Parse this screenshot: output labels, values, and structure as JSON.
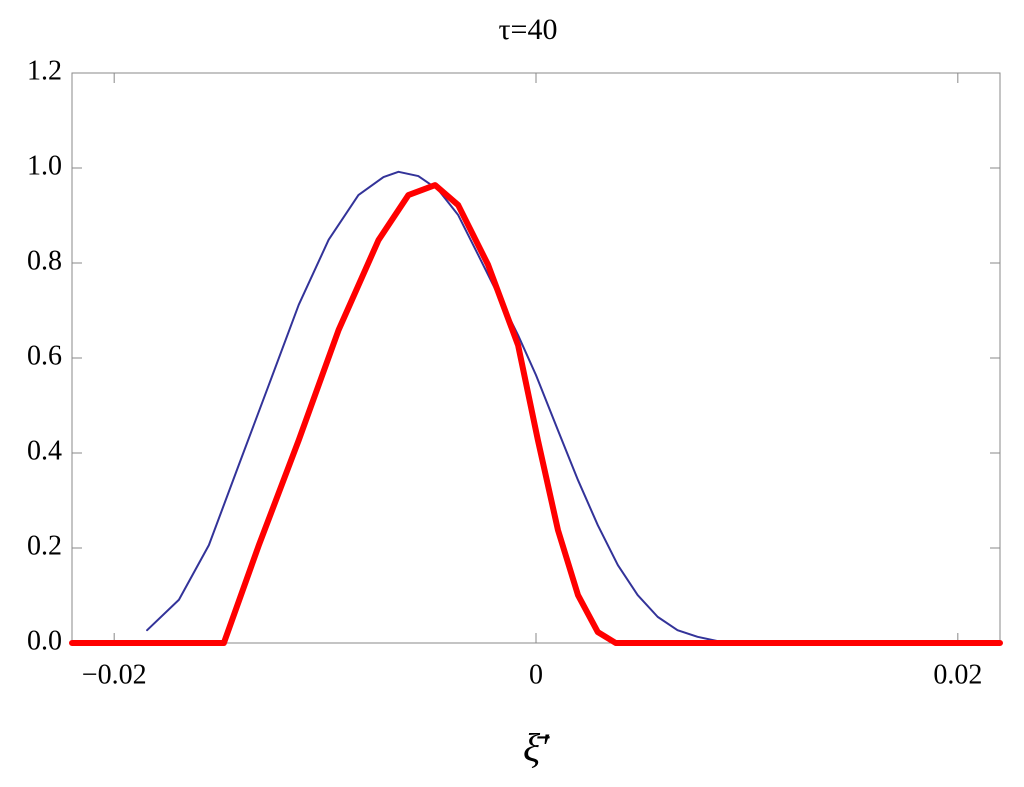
{
  "chart_data": {
    "type": "line",
    "title": "τ=40",
    "x_label": "ξ̄′",
    "xlim": [
      -0.022,
      0.022
    ],
    "xticks": [
      {
        "value": -0.02,
        "label": "−0.02"
      },
      0,
      0.02
    ],
    "ylim": [
      0,
      1.2
    ],
    "yticks": [
      {
        "value": 0,
        "label": "0.0"
      },
      0.2,
      0.4,
      0.6,
      0.8,
      {
        "value": 1,
        "label": "1.0"
      },
      1.2
    ],
    "series": [
      {
        "color": "#333399",
        "width": 2,
        "x": [
          -0.01844,
          -0.01693,
          -0.01551,
          -0.01409,
          -0.01267,
          -0.01125,
          -0.00983,
          -0.00842,
          -0.00723,
          -0.00652,
          -0.00558,
          -0.00463,
          -0.00369,
          -0.00274,
          -0.0018,
          -0.00085,
          0,
          0.00104,
          0.00199,
          0.00293,
          0.00388,
          0.00482,
          0.00577,
          0.00671,
          0.00766,
          0.00861,
          0.00955,
          0.022
        ],
        "values": [
          0.027,
          0.091,
          0.206,
          0.375,
          0.543,
          0.712,
          0.849,
          0.943,
          0.981,
          0.992,
          0.983,
          0.954,
          0.901,
          0.817,
          0.733,
          0.648,
          0.564,
          0.448,
          0.343,
          0.248,
          0.164,
          0.101,
          0.055,
          0.027,
          0.013,
          0.004,
          0,
          0
        ]
      },
      {
        "color": "#ff0000",
        "width": 6,
        "x": [
          -0.022,
          -0.0148,
          -0.01314,
          -0.01125,
          -0.00936,
          -0.00747,
          -0.00605,
          -0.00478,
          -0.00369,
          -0.00227,
          -0.00085,
          9e-05,
          0.00104,
          0.00199,
          0.00293,
          0.00378,
          0.022
        ],
        "values": [
          0,
          0,
          0.206,
          0.427,
          0.659,
          0.848,
          0.943,
          0.964,
          0.922,
          0.796,
          0.627,
          0.427,
          0.238,
          0.101,
          0.023,
          0,
          0
        ]
      }
    ]
  }
}
